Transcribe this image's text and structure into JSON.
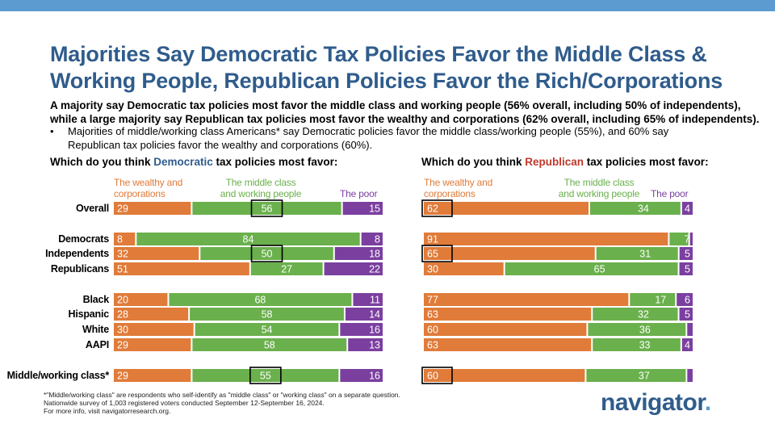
{
  "header": {
    "title_line1": "Majorities Say Democratic Tax Policies Favor the Middle Class &",
    "title_line2": "Working People, Republican Policies Favor the Rich/Corporations",
    "subtitle_line1": "A majority say Democratic tax policies most favor the middle class and working people (56% overall, including 50% of independents),",
    "subtitle_line2": "while a large majority say Republican tax policies most favor the wealthy and corporations (62% overall, including 65% of independents).",
    "bullet": "•",
    "bullet_line1": "Majorities of middle/working class Americans* say Democratic policies favor the middle class/working people (55%), and 60% say",
    "bullet_line2": "Republican tax policies favor the wealthy and corporations (60%)."
  },
  "questions": {
    "dem_prefix": "Which do you think ",
    "dem_party": "Democratic",
    "dem_suffix": " tax policies most favor:",
    "rep_prefix": "Which do you think ",
    "rep_party": "Republican",
    "rep_suffix": " tax policies most favor:"
  },
  "column_headers": {
    "wealthy_line1": "The wealthy and",
    "wealthy_line2": "corporations",
    "middle_line1": "The middle class",
    "middle_line2": "and working people",
    "poor": "The poor"
  },
  "colors": {
    "wealthy": "#e07b39",
    "middle": "#6ab04c",
    "poor": "#7b3fa0",
    "title": "#2f5c8c",
    "topbar": "#5b9bd0"
  },
  "chart_data": [
    {
      "type": "bar",
      "stacked": true,
      "orientation": "horizontal",
      "title": "Which do you think Democratic tax policies most favor:",
      "series_names": [
        "The wealthy and corporations",
        "The middle class and working people",
        "The poor"
      ],
      "categories": [
        "Overall",
        "Democrats",
        "Independents",
        "Republicans",
        "Black",
        "Hispanic",
        "White",
        "AAPI",
        "Middle/working class*"
      ],
      "series": [
        {
          "name": "The wealthy and corporations",
          "values": [
            29,
            8,
            32,
            51,
            20,
            28,
            30,
            29,
            29
          ]
        },
        {
          "name": "The middle class and working people",
          "values": [
            56,
            84,
            50,
            27,
            68,
            58,
            54,
            58,
            55
          ]
        },
        {
          "name": "The poor",
          "values": [
            15,
            8,
            18,
            22,
            11,
            14,
            16,
            13,
            16
          ]
        }
      ],
      "highlighted": [
        {
          "category": "Overall",
          "series": "The middle class and working people"
        },
        {
          "category": "Independents",
          "series": "The middle class and working people"
        },
        {
          "category": "Middle/working class*",
          "series": "The middle class and working people"
        }
      ]
    },
    {
      "type": "bar",
      "stacked": true,
      "orientation": "horizontal",
      "title": "Which do you think Republican tax policies most favor:",
      "series_names": [
        "The wealthy and corporations",
        "The middle class and working people",
        "The poor"
      ],
      "categories": [
        "Overall",
        "Democrats",
        "Independents",
        "Republicans",
        "Black",
        "Hispanic",
        "White",
        "AAPI",
        "Middle/working class*"
      ],
      "series": [
        {
          "name": "The wealthy and corporations",
          "values": [
            62,
            91,
            65,
            30,
            77,
            63,
            60,
            63,
            60
          ]
        },
        {
          "name": "The middle class and working people",
          "values": [
            34,
            7,
            31,
            65,
            17,
            32,
            36,
            33,
            37
          ]
        },
        {
          "name": "The poor",
          "values": [
            4,
            1,
            5,
            5,
            6,
            5,
            2,
            4,
            2
          ]
        }
      ],
      "labels": [
        [
          "62",
          "34",
          "4"
        ],
        [
          "91",
          "7",
          ""
        ],
        [
          "65",
          "31",
          "5"
        ],
        [
          "30",
          "65",
          "5"
        ],
        [
          "77",
          "17",
          "6"
        ],
        [
          "63",
          "32",
          "5"
        ],
        [
          "60",
          "36",
          ""
        ],
        [
          "63",
          "33",
          "4"
        ],
        [
          "60",
          "37",
          ""
        ]
      ],
      "highlighted": [
        {
          "category": "Overall",
          "series": "The wealthy and corporations"
        },
        {
          "category": "Independents",
          "series": "The wealthy and corporations"
        },
        {
          "category": "Middle/working class*",
          "series": "The wealthy and corporations"
        }
      ]
    }
  ],
  "footnote": {
    "line1": "*\"Middle/working class\" are respondents who self-identify as \"middle class\" or \"working class\" on a separate question.",
    "line2": "Nationwide survey of 1,003 registered voters conducted September 12-September 16, 2024.",
    "line3": "For more info, visit navigatorresearch.org."
  },
  "logo": {
    "text": "navigator",
    "dot": "."
  }
}
